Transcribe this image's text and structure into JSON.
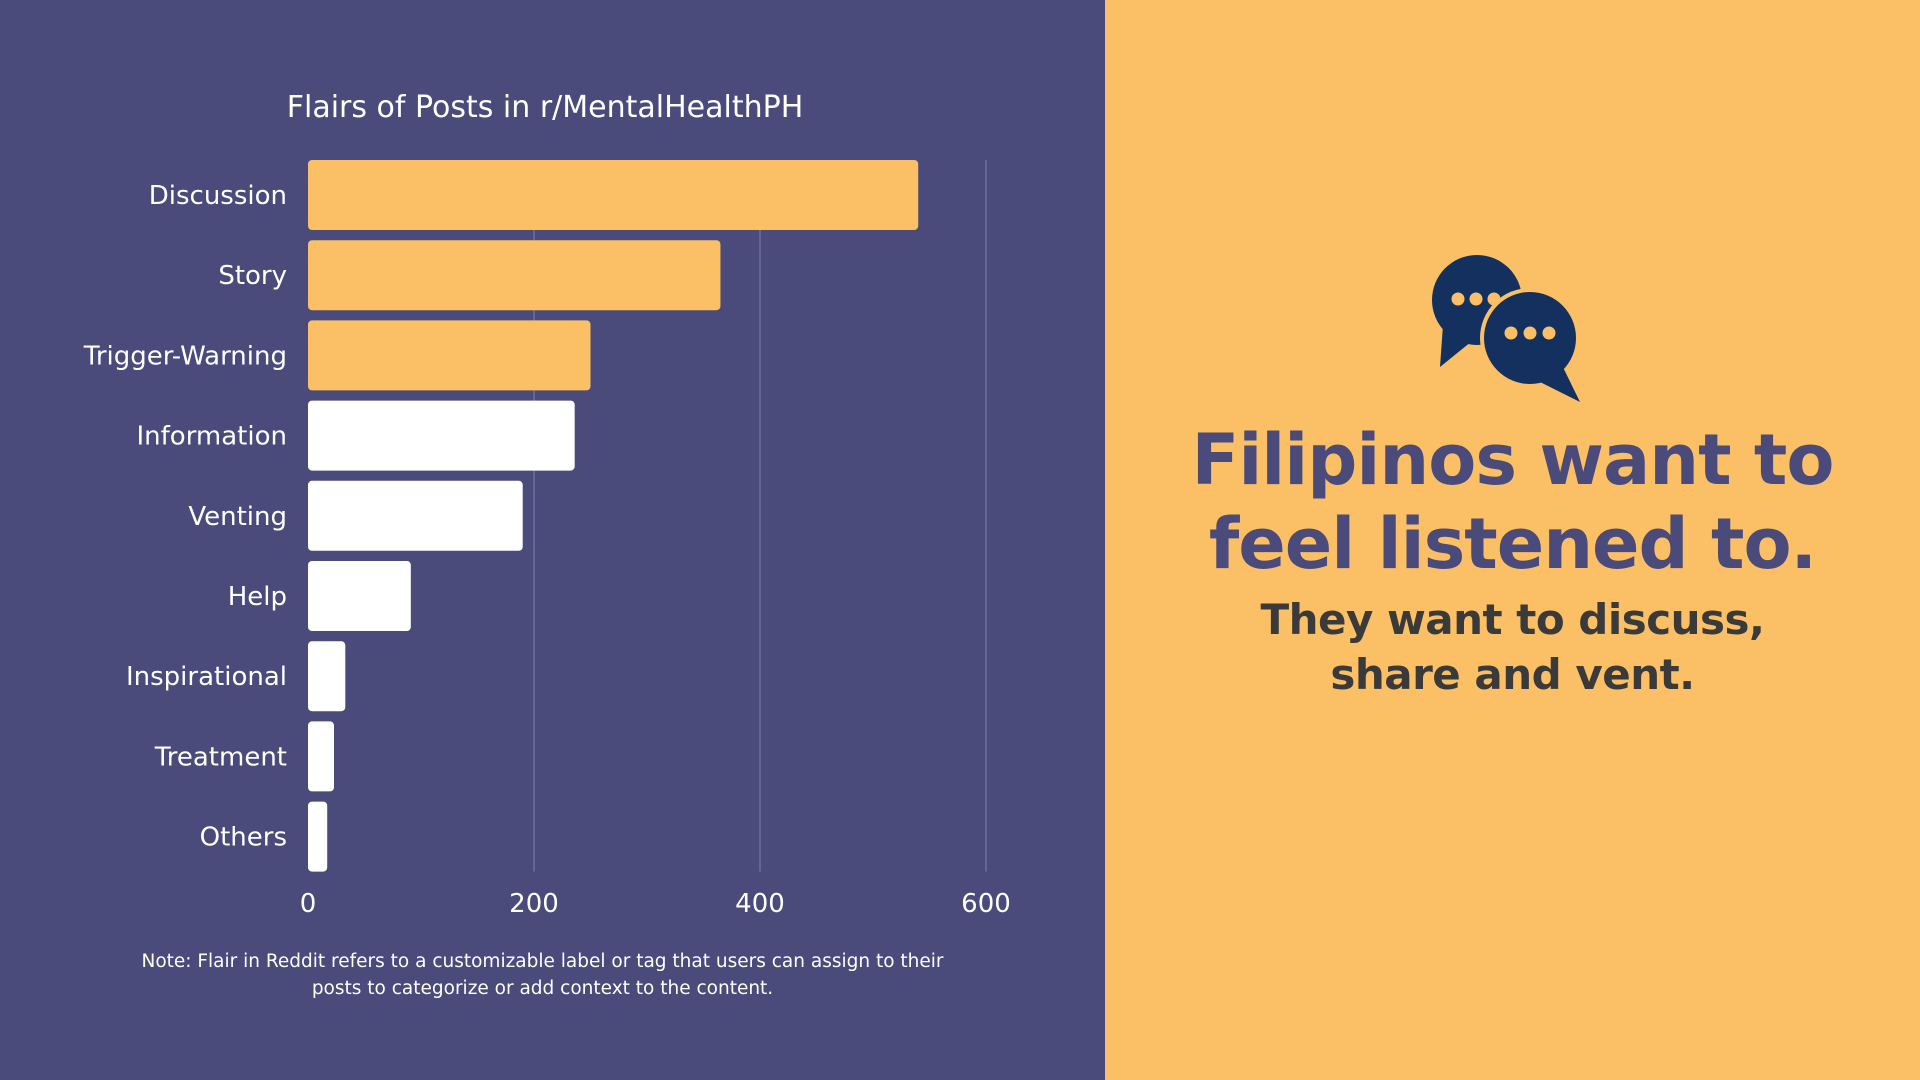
{
  "chart_data": {
    "type": "bar",
    "orientation": "horizontal",
    "title": "Flairs of Posts in r/MentalHealthPH",
    "categories": [
      "Discussion",
      "Story",
      "Trigger-Warning",
      "Information",
      "Venting",
      "Help",
      "Inspirational",
      "Treatment",
      "Others"
    ],
    "values": [
      540,
      365,
      250,
      236,
      190,
      91,
      33,
      23,
      17
    ],
    "xlim": [
      0,
      600
    ],
    "xticks": [
      0,
      200,
      400,
      600
    ],
    "xtick_labels": [
      "0",
      "200",
      "400",
      "600"
    ],
    "grid": "vertical",
    "highlight_count": 3,
    "colors": {
      "highlight": "#fbc066",
      "default": "#ffffff",
      "grid": "#6e6e9a"
    }
  },
  "note": {
    "line1": "Note: Flair in Reddit refers to a customizable label or tag that users can assign to their",
    "line2": "posts to categorize or add context to the content."
  },
  "headline": {
    "line1": "Filipinos want to",
    "line2": "feel listened to."
  },
  "subline": {
    "line1": "They want to discuss,",
    "line2": "share and vent."
  },
  "icon": "chat-bubbles-icon",
  "colors": {
    "left_background": "#4a4a7b",
    "right_background": "#fbc066",
    "icon": "#14305f",
    "headline": "#4a4a7b",
    "subline": "#3a3a3a"
  }
}
